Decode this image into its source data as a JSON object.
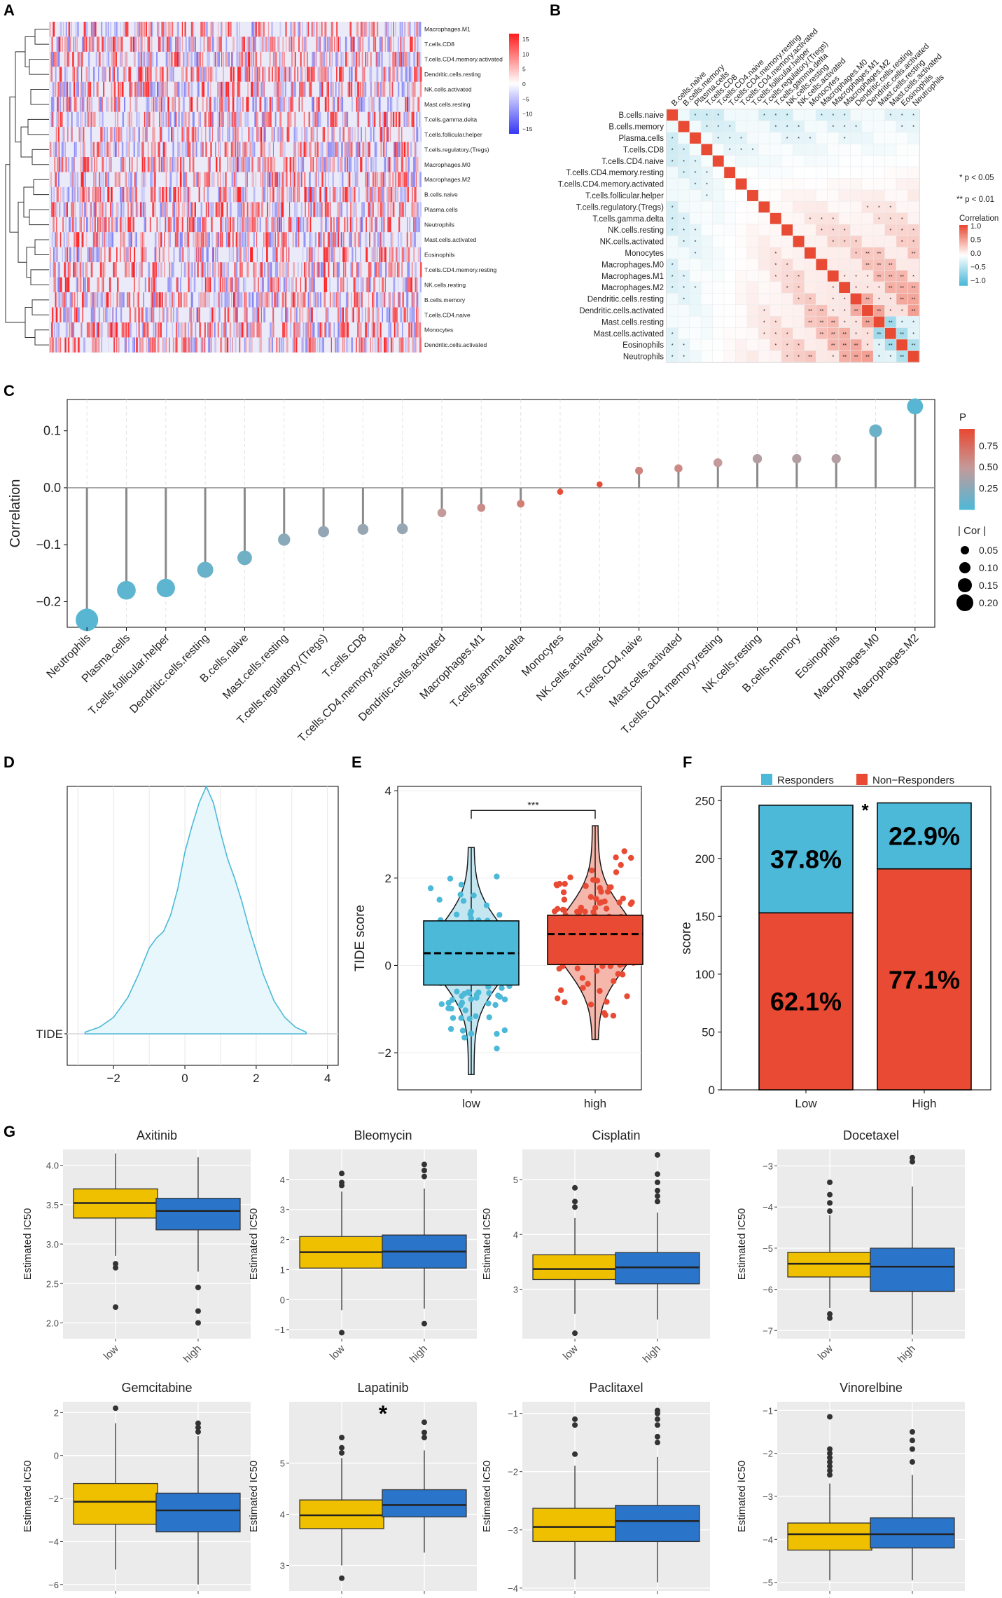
{
  "figure": {
    "panels": [
      {
        "label": "A"
      },
      {
        "label": "B"
      },
      {
        "label": "C"
      },
      {
        "label": "D"
      },
      {
        "label": "E"
      },
      {
        "label": "F"
      },
      {
        "label": "G"
      }
    ]
  },
  "colors": {
    "blue": "#4cb9d8",
    "red": "#e84a33",
    "yellow": "#efc000",
    "boxblue": "#2a74c9",
    "grey_panel": "#ebebeb",
    "heat_low": "#3b3bf5",
    "heat_high": "#ff2020",
    "heat_mid": "#eaeaf8"
  },
  "chart_data": [
    {
      "id": "A",
      "type": "heatmap",
      "row_labels": [
        "Macrophages.M1",
        "T.cells.CD8",
        "T.cells.CD4.memory.activated",
        "Dendritic.cells.resting",
        "NK.cells.activated",
        "Mast.cells.resting",
        "T.cells.gamma.delta",
        "T.cells.follicular.helper",
        "T.cells.regulatory.(Tregs)",
        "Macrophages.M0",
        "Macrophages.M2",
        "B.cells.naive",
        "Plasma.cells",
        "Neutrophils",
        "Mast.cells.activated",
        "Eosinophils",
        "T.cells.CD4.memory.resting",
        "NK.cells.resting",
        "B.cells.memory",
        "T.cells.CD4.naive",
        "Monocytes",
        "Dendritic.cells.activated"
      ],
      "legend_ticks": [
        "15",
        "10",
        "5",
        "0",
        "−5",
        "−10",
        "−15"
      ],
      "range": [
        -17,
        17
      ]
    },
    {
      "id": "B",
      "type": "heatmap",
      "labels": [
        "B.cells.naive",
        "B.cells.memory",
        "Plasma.cells",
        "T.cells.CD8",
        "T.cells.CD4.naive",
        "T.cells.CD4.memory.resting",
        "T.cells.CD4.memory.activated",
        "T.cells.follicular.helper",
        "T.cells.regulatory.(Tregs)",
        "T.cells.gamma.delta",
        "NK.cells.resting",
        "NK.cells.activated",
        "Monocytes",
        "Macrophages.M0",
        "Macrophages.M1",
        "Macrophages.M2",
        "Dendritic.cells.resting",
        "Dendritic.cells.activated",
        "Mast.cells.resting",
        "Mast.cells.activated",
        "Eosinophils",
        "Neutrophils"
      ],
      "sig_legend": [
        "* p < 0.05",
        "** p < 0.01"
      ],
      "legend_title": "Correlation",
      "legend_ticks": [
        "1.0",
        "0.5",
        "0.0",
        "−0.5",
        "−1.0"
      ],
      "range": [
        -1,
        1
      ]
    },
    {
      "id": "C",
      "type": "scatter",
      "subtype": "lollipop",
      "ylabel": "Correlation",
      "ylim": [
        -0.245,
        0.155
      ],
      "yticks": [
        {
          "v": 0.1,
          "t": "0.1"
        },
        {
          "v": 0.0,
          "t": "0.0"
        },
        {
          "v": -0.1,
          "t": "−0.1"
        },
        {
          "v": -0.2,
          "t": "−0.2"
        }
      ],
      "categories": [
        "Neutrophils",
        "Plasma.cells",
        "T.cells.follicular.helper",
        "Dendritic.cells.resting",
        "B.cells.naive",
        "Mast.cells.resting",
        "T.cells.regulatory.(Tregs)",
        "T.cells.CD8",
        "T.cells.CD4.memory.activated",
        "Dendritic.cells.activated",
        "Macrophages.M1",
        "T.cells.gamma.delta",
        "Monocytes",
        "NK.cells.activated",
        "T.cells.CD4.naive",
        "Mast.cells.activated",
        "T.cells.CD4.memory.resting",
        "NK.cells.resting",
        "B.cells.memory",
        "Eosinophils",
        "Macrophages.M0",
        "Macrophages.M2"
      ],
      "values": [
        -0.232,
        -0.18,
        -0.176,
        -0.144,
        -0.123,
        -0.091,
        -0.077,
        -0.073,
        -0.072,
        -0.044,
        -0.035,
        -0.028,
        -0.007,
        0.006,
        0.03,
        0.034,
        0.044,
        0.051,
        0.051,
        0.051,
        0.1,
        0.143
      ],
      "p_values": [
        0.05,
        0.07,
        0.07,
        0.12,
        0.15,
        0.25,
        0.3,
        0.31,
        0.31,
        0.5,
        0.58,
        0.66,
        0.92,
        0.93,
        0.63,
        0.59,
        0.5,
        0.43,
        0.43,
        0.43,
        0.13,
        0.05
      ],
      "legend_p_title": "P",
      "legend_p_ticks": [
        {
          "v": 0.75,
          "t": "0.75"
        },
        {
          "v": 0.5,
          "t": "0.50"
        },
        {
          "v": 0.25,
          "t": "0.25"
        }
      ],
      "legend_size_title": "| Cor |",
      "legend_size_ticks": [
        {
          "v": 0.05,
          "t": "0.05"
        },
        {
          "v": 0.1,
          "t": "0.10"
        },
        {
          "v": 0.15,
          "t": "0.15"
        },
        {
          "v": 0.2,
          "t": "0.20"
        }
      ]
    },
    {
      "id": "D",
      "type": "area",
      "category_label": "TIDE",
      "xlim": [
        -3.3,
        4.3
      ],
      "xticks": [
        {
          "v": -2,
          "t": "−2"
        },
        {
          "v": 0,
          "t": "0"
        },
        {
          "v": 2,
          "t": "2"
        },
        {
          "v": 4,
          "t": "4"
        }
      ],
      "x": [
        -2.8,
        -2.4,
        -2.0,
        -1.6,
        -1.3,
        -1.0,
        -0.8,
        -0.6,
        -0.4,
        -0.2,
        0.0,
        0.2,
        0.4,
        0.6,
        0.8,
        1.0,
        1.2,
        1.4,
        1.6,
        1.8,
        2.0,
        2.2,
        2.5,
        2.8,
        3.1,
        3.4
      ],
      "y": [
        0.005,
        0.02,
        0.05,
        0.11,
        0.18,
        0.26,
        0.29,
        0.31,
        0.36,
        0.44,
        0.55,
        0.63,
        0.7,
        0.75,
        0.7,
        0.61,
        0.53,
        0.47,
        0.4,
        0.32,
        0.25,
        0.18,
        0.1,
        0.05,
        0.02,
        0.005
      ]
    },
    {
      "id": "E",
      "type": "scatter",
      "subtype": "violin-box",
      "ylabel": "TIDE score",
      "ylim": [
        -2.85,
        4.1
      ],
      "yticks": [
        {
          "v": 4,
          "t": "4"
        },
        {
          "v": 2,
          "t": "2"
        },
        {
          "v": 0,
          "t": "0"
        },
        {
          "v": -2,
          "t": "−2"
        }
      ],
      "categories": [
        "low",
        "high"
      ],
      "boxes": [
        {
          "name": "low",
          "q1": -0.45,
          "median": 0.28,
          "q3": 1.02,
          "whisker_low": -2.5,
          "whisker_high": 2.7
        },
        {
          "name": "high",
          "q1": 0.02,
          "median": 0.72,
          "q3": 1.15,
          "whisker_low": -1.7,
          "whisker_high": 3.2
        }
      ],
      "significance": "***"
    },
    {
      "id": "F",
      "type": "bar",
      "stacked": true,
      "ylabel": "score",
      "ylim": [
        0,
        255
      ],
      "yticks": [
        {
          "v": 250,
          "t": "250"
        },
        {
          "v": 200,
          "t": "200"
        },
        {
          "v": 150,
          "t": "150"
        },
        {
          "v": 100,
          "t": "100"
        },
        {
          "v": 50,
          "t": "50"
        },
        {
          "v": 0,
          "t": "0"
        }
      ],
      "categories": [
        "Low",
        "High"
      ],
      "series": [
        {
          "name": "Non−Responders",
          "values": [
            153,
            191
          ],
          "labels": [
            "62.1%",
            "77.1%"
          ]
        },
        {
          "name": "Responders",
          "values": [
            93,
            57
          ],
          "labels": [
            "37.8%",
            "22.9%"
          ]
        }
      ],
      "significance": "*"
    },
    {
      "id": "G",
      "type": "bar",
      "subtype": "boxplot-grid",
      "ylabel": "Estimated IC50",
      "categories": [
        "low",
        "high"
      ],
      "drugs": [
        {
          "name": "Axitinib",
          "ylim": [
            1.8,
            4.2
          ],
          "yticks": [
            {
              "v": 4.0,
              "t": "4.0"
            },
            {
              "v": 3.5,
              "t": "3.5"
            },
            {
              "v": 3.0,
              "t": "3.0"
            },
            {
              "v": 2.5,
              "t": "2.5"
            },
            {
              "v": 2.0,
              "t": "2.0"
            }
          ],
          "boxes": [
            {
              "min": 2.85,
              "q1": 3.33,
              "median": 3.52,
              "q3": 3.7,
              "max": 4.15,
              "outliers": [
                2.75,
                2.7,
                2.2
              ]
            },
            {
              "min": 2.65,
              "q1": 3.18,
              "median": 3.42,
              "q3": 3.58,
              "max": 4.1,
              "outliers": [
                2.45,
                2.15,
                2.0
              ]
            }
          ],
          "sig": ""
        },
        {
          "name": "Bleomycin",
          "ylim": [
            -1.3,
            5.0
          ],
          "yticks": [
            {
              "v": 4,
              "t": "4"
            },
            {
              "v": 3,
              "t": "3"
            },
            {
              "v": 2,
              "t": "2"
            },
            {
              "v": 1,
              "t": "1"
            },
            {
              "v": 0,
              "t": "0"
            },
            {
              "v": -1,
              "t": "−1"
            }
          ],
          "boxes": [
            {
              "min": -0.35,
              "q1": 1.05,
              "median": 1.58,
              "q3": 2.1,
              "max": 3.6,
              "outliers": [
                4.2,
                3.9,
                3.8,
                -1.1
              ]
            },
            {
              "min": -0.3,
              "q1": 1.05,
              "median": 1.6,
              "q3": 2.15,
              "max": 3.7,
              "outliers": [
                4.5,
                4.3,
                4.1,
                -0.8
              ]
            }
          ],
          "sig": ""
        },
        {
          "name": "Cisplatin",
          "ylim": [
            2.1,
            5.55
          ],
          "yticks": [
            {
              "v": 5,
              "t": "5"
            },
            {
              "v": 4,
              "t": "4"
            },
            {
              "v": 3,
              "t": "3"
            }
          ],
          "boxes": [
            {
              "min": 2.55,
              "q1": 3.18,
              "median": 3.37,
              "q3": 3.63,
              "max": 4.3,
              "outliers": [
                4.85,
                4.6,
                4.5,
                2.2
              ]
            },
            {
              "min": 2.45,
              "q1": 3.1,
              "median": 3.4,
              "q3": 3.67,
              "max": 4.4,
              "outliers": [
                5.45,
                5.1,
                4.95,
                4.8,
                4.7,
                4.6
              ]
            }
          ],
          "sig": ""
        },
        {
          "name": "Docetaxel",
          "ylim": [
            -7.2,
            -2.6
          ],
          "yticks": [
            {
              "v": -3,
              "t": "−3"
            },
            {
              "v": -4,
              "t": "−4"
            },
            {
              "v": -5,
              "t": "−5"
            },
            {
              "v": -6,
              "t": "−6"
            },
            {
              "v": -7,
              "t": "−7"
            }
          ],
          "boxes": [
            {
              "min": -6.45,
              "q1": -5.7,
              "median": -5.38,
              "q3": -5.1,
              "max": -4.2,
              "outliers": [
                -3.4,
                -3.7,
                -3.9,
                -4.1,
                -6.6,
                -6.7
              ]
            },
            {
              "min": -7.1,
              "q1": -6.05,
              "median": -5.45,
              "q3": -5.0,
              "max": -3.5,
              "outliers": [
                -2.8,
                -2.9
              ]
            }
          ],
          "sig": ""
        },
        {
          "name": "Gemcitabine",
          "ylim": [
            -6.3,
            2.5
          ],
          "yticks": [
            {
              "v": 2,
              "t": "2"
            },
            {
              "v": 0,
              "t": "0"
            },
            {
              "v": -2,
              "t": "−2"
            },
            {
              "v": -4,
              "t": "−4"
            },
            {
              "v": -6,
              "t": "−6"
            }
          ],
          "boxes": [
            {
              "min": -5.3,
              "q1": -3.2,
              "median": -2.15,
              "q3": -1.3,
              "max": 1.5,
              "outliers": [
                2.2
              ]
            },
            {
              "min": -6.0,
              "q1": -3.55,
              "median": -2.55,
              "q3": -1.75,
              "max": 0.9,
              "outliers": [
                1.5,
                1.3,
                1.1
              ]
            }
          ],
          "sig": ""
        },
        {
          "name": "Lapatinib",
          "ylim": [
            2.5,
            6.2
          ],
          "yticks": [
            {
              "v": 5,
              "t": "5"
            },
            {
              "v": 4,
              "t": "4"
            },
            {
              "v": 3,
              "t": "3"
            }
          ],
          "boxes": [
            {
              "min": 3.0,
              "q1": 3.72,
              "median": 3.98,
              "q3": 4.28,
              "max": 5.1,
              "outliers": [
                5.5,
                5.3,
                5.2,
                2.75
              ]
            },
            {
              "min": 3.25,
              "q1": 3.95,
              "median": 4.18,
              "q3": 4.48,
              "max": 5.25,
              "outliers": [
                5.8,
                5.6,
                5.5
              ]
            }
          ],
          "sig": "*"
        },
        {
          "name": "Paclitaxel",
          "ylim": [
            -4.05,
            -0.8
          ],
          "yticks": [
            {
              "v": -1,
              "t": "−1"
            },
            {
              "v": -2,
              "t": "−2"
            },
            {
              "v": -3,
              "t": "−3"
            },
            {
              "v": -4,
              "t": "−4"
            }
          ],
          "boxes": [
            {
              "min": -3.85,
              "q1": -3.2,
              "median": -2.95,
              "q3": -2.63,
              "max": -1.9,
              "outliers": [
                -1.1,
                -1.2,
                -1.7
              ]
            },
            {
              "min": -3.9,
              "q1": -3.2,
              "median": -2.85,
              "q3": -2.58,
              "max": -1.75,
              "outliers": [
                -0.95,
                -1.0,
                -1.1,
                -1.2,
                -1.4,
                -1.5
              ]
            }
          ],
          "sig": ""
        },
        {
          "name": "Vinorelbine",
          "ylim": [
            -5.2,
            -0.8
          ],
          "yticks": [
            {
              "v": -1,
              "t": "−1"
            },
            {
              "v": -2,
              "t": "−2"
            },
            {
              "v": -3,
              "t": "−3"
            },
            {
              "v": -4,
              "t": "−4"
            },
            {
              "v": -5,
              "t": "−5"
            }
          ],
          "boxes": [
            {
              "min": -4.95,
              "q1": -4.25,
              "median": -3.88,
              "q3": -3.62,
              "max": -2.7,
              "outliers": [
                -1.15,
                -1.9,
                -2.0,
                -2.1,
                -2.2,
                -2.3,
                -2.4,
                -2.5
              ]
            },
            {
              "min": -4.95,
              "q1": -4.2,
              "median": -3.88,
              "q3": -3.5,
              "max": -2.5,
              "outliers": [
                -1.5,
                -1.7,
                -1.9,
                -2.2
              ]
            }
          ],
          "sig": ""
        }
      ]
    }
  ]
}
